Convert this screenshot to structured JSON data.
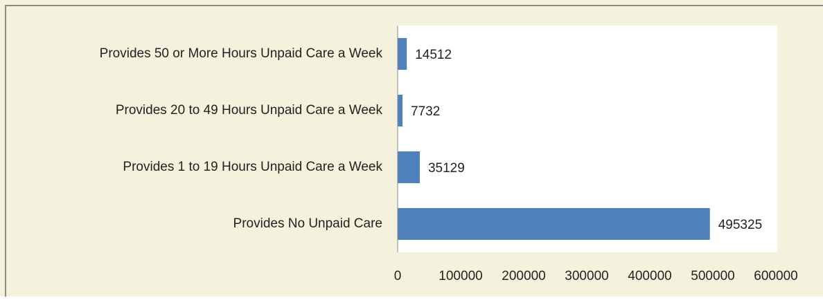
{
  "chart_data": {
    "type": "bar",
    "orientation": "horizontal",
    "categories": [
      "Provides 50 or More Hours Unpaid Care a Week",
      "Provides 20 to 49 Hours Unpaid Care a Week",
      "Provides 1 to 19 Hours Unpaid Care a Week",
      "Provides No Unpaid Care"
    ],
    "values": [
      14512,
      7732,
      35129,
      495325
    ],
    "color": "#4f81bd",
    "xlim": [
      0,
      600000
    ],
    "xticks": [
      0,
      100000,
      200000,
      300000,
      400000,
      500000,
      600000
    ],
    "grid": false
  }
}
